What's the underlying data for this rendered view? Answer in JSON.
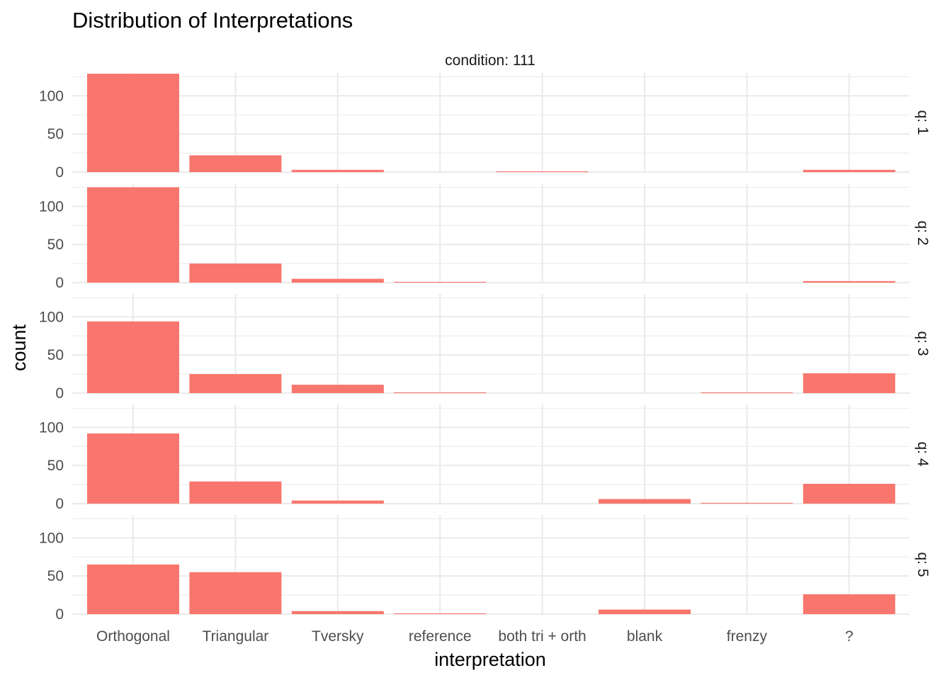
{
  "chart_data": {
    "type": "bar",
    "title": "Distribution of Interpretations",
    "xlabel": "interpretation",
    "ylabel": "count",
    "column_strip": "condition: 111",
    "categories": [
      "Orthogonal",
      "Triangular",
      "Tversky",
      "reference",
      "both tri + orth",
      "blank",
      "frenzy",
      "?"
    ],
    "yticks": [
      0,
      50,
      100
    ],
    "ylim": [
      0,
      130
    ],
    "bar_color": "#F8766D",
    "grid": true,
    "facets": [
      {
        "label": "q: 1",
        "values": [
          129,
          22,
          3,
          0,
          1,
          0,
          0,
          3
        ]
      },
      {
        "label": "q: 2",
        "values": [
          125,
          25,
          5,
          1,
          0,
          0,
          0,
          2
        ]
      },
      {
        "label": "q: 3",
        "values": [
          94,
          25,
          11,
          1,
          0,
          0,
          1,
          26
        ]
      },
      {
        "label": "q: 4",
        "values": [
          92,
          29,
          4,
          0,
          0,
          6,
          1,
          26
        ]
      },
      {
        "label": "q: 5",
        "values": [
          65,
          55,
          4,
          1,
          0,
          6,
          0,
          26
        ]
      }
    ]
  }
}
